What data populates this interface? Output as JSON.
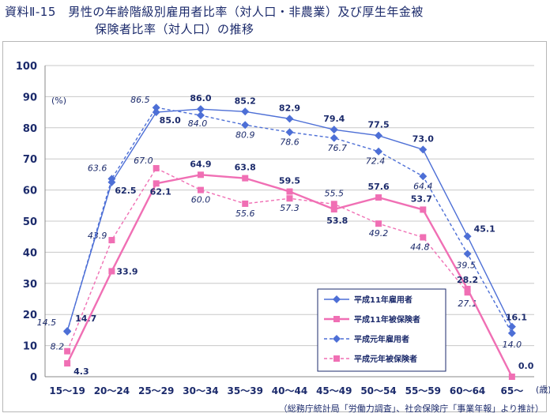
{
  "title": {
    "line1": "資料Ⅱ-15　男性の年齢階級別雇用者比率（対人口・非農業）及び厚生年金被",
    "line2": "保険者比率（対人口）の推移"
  },
  "source_note": "（総務庁統計局「労働力調査」、社会保険庁「事業年報」より推計）",
  "colors": {
    "blue": "#4d6fd6",
    "pink": "#f06fb4",
    "axis": "#1b2a6b"
  },
  "chart_data": {
    "type": "line",
    "title": "",
    "xlabel": "",
    "ylabel": "",
    "y_unit": "(%)",
    "x_unit": "(歳)",
    "ylim": [
      0,
      100
    ],
    "yticks": [
      "0",
      "10",
      "20",
      "30",
      "40",
      "50",
      "60",
      "70",
      "80",
      "90",
      "100"
    ],
    "grid": true,
    "legend_position": "bottom-right",
    "categories": [
      "15～19",
      "20～24",
      "25～29",
      "30～34",
      "35～39",
      "40～44",
      "45～49",
      "50～54",
      "55～59",
      "60～64",
      "65～"
    ],
    "series": [
      {
        "name": "平成11年雇用者",
        "color": "#4d6fd6",
        "line": "solid",
        "label_style": "bold",
        "values": [
          14.7,
          62.5,
          85.0,
          86.0,
          85.2,
          82.9,
          79.4,
          77.5,
          73.0,
          45.1,
          16.1
        ],
        "labels": [
          "14.7",
          "62.5",
          "85.0",
          "86.0",
          "85.2",
          "82.9",
          "79.4",
          "77.5",
          "73.0",
          "45.1",
          "16.1"
        ]
      },
      {
        "name": "平成11年被保険者",
        "color": "#f06fb4",
        "line": "solid",
        "label_style": "bold",
        "values": [
          4.3,
          33.9,
          62.1,
          64.9,
          63.8,
          59.5,
          53.8,
          57.6,
          53.7,
          28.2,
          0.0
        ],
        "labels": [
          "4.3",
          "33.9",
          "62.1",
          "64.9",
          "63.8",
          "59.5",
          "53.8",
          "57.6",
          "53.7",
          "28.2",
          "0.0"
        ]
      },
      {
        "name": "平成元年雇用者",
        "color": "#4d6fd6",
        "line": "dashed",
        "label_style": "italic",
        "values": [
          14.5,
          63.6,
          86.5,
          84.0,
          80.9,
          78.6,
          76.7,
          72.4,
          64.4,
          39.5,
          14.0
        ],
        "labels": [
          "14.5",
          "63.6",
          "86.5",
          "84.0",
          "80.9",
          "78.6",
          "76.7",
          "72.4",
          "64.4",
          "39.5",
          "14.0"
        ]
      },
      {
        "name": "平成元年被保険者",
        "color": "#f06fb4",
        "line": "dashed",
        "label_style": "italic",
        "values": [
          8.2,
          43.9,
          67.0,
          60.0,
          55.6,
          57.3,
          55.5,
          49.2,
          44.8,
          27.1,
          null
        ],
        "labels": [
          "8.2",
          "43.9",
          "67.0",
          "60.0",
          "55.6",
          "57.3",
          "55.5",
          "49.2",
          "44.8",
          "27.1",
          ""
        ]
      }
    ]
  }
}
